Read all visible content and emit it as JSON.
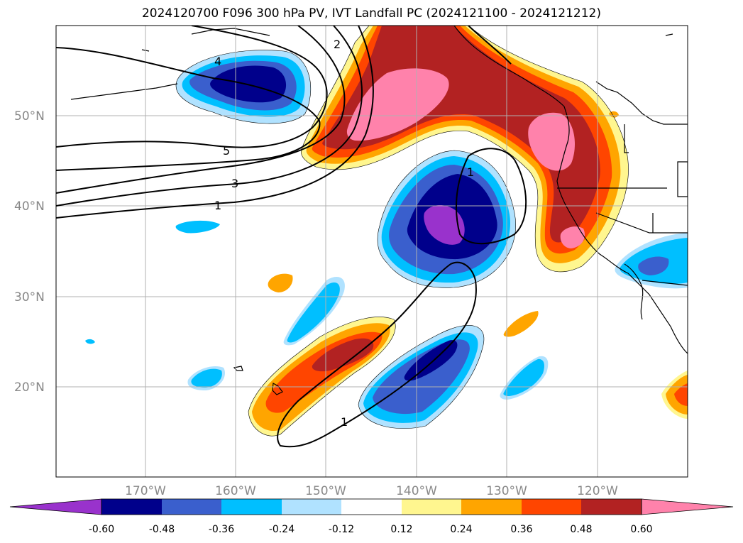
{
  "title": "2024120700 F096 300 hPa PV, IVT Landfall PC (2024121100 - 2024121212)",
  "lat_labels": [
    "50°N",
    "40°N",
    "30°N",
    "20°N"
  ],
  "lon_labels": [
    "170°W",
    "160°W",
    "150°W",
    "140°W",
    "130°W",
    "120°W"
  ],
  "contour_labels": [
    "2",
    "4",
    "5",
    "3",
    "1",
    "1",
    "1"
  ],
  "colorbar": {
    "labels": [
      "-0.60",
      "-0.48",
      "-0.36",
      "-0.24",
      "-0.12",
      "0.12",
      "0.24",
      "0.36",
      "0.48",
      "0.60"
    ],
    "colors": [
      "#9932cc",
      "#00008b",
      "#3a5fcd",
      "#00bfff",
      "#b0e2ff",
      "#ffffff",
      "#fff68f",
      "#ffa500",
      "#ff4500",
      "#b22222",
      "#ff82ab"
    ]
  }
}
